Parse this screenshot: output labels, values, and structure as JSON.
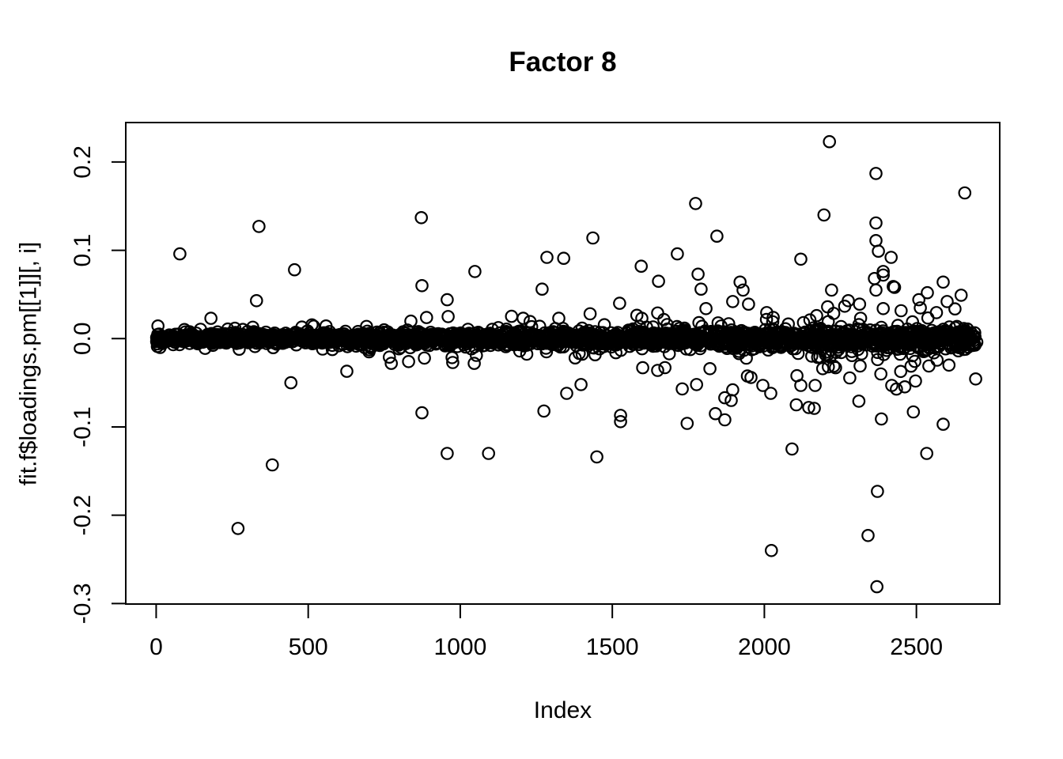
{
  "chart_data": {
    "type": "scatter",
    "title": "Factor 8",
    "xlabel": "Index",
    "ylabel": "fit.f$loadings.pm[[1]][, i]",
    "marker": "open-circle",
    "marker_color": "#000000",
    "background_color": "#ffffff",
    "x_ticks": [
      0,
      500,
      1000,
      1500,
      2000,
      2500
    ],
    "y_ticks": [
      -0.3,
      -0.2,
      -0.1,
      0.0,
      0.1,
      0.2
    ],
    "xlim": [
      -100,
      2774
    ],
    "ylim": [
      -0.3006,
      0.2447
    ],
    "x_range_of_data": [
      1,
      2700
    ],
    "grid": false,
    "legend": "none",
    "outliers": [
      [
        13,
        -0.01
      ],
      [
        78,
        0.096
      ],
      [
        161,
        -0.011
      ],
      [
        180,
        0.023
      ],
      [
        269,
        -0.215
      ],
      [
        273,
        -0.012
      ],
      [
        325,
        -0.009
      ],
      [
        330,
        0.043
      ],
      [
        338,
        0.127
      ],
      [
        382,
        -0.143
      ],
      [
        443,
        -0.05
      ],
      [
        455,
        0.078
      ],
      [
        518,
        0.014
      ],
      [
        627,
        -0.037
      ],
      [
        700,
        -0.015
      ],
      [
        767,
        -0.021
      ],
      [
        773,
        -0.028
      ],
      [
        830,
        -0.026
      ],
      [
        872,
        0.137
      ],
      [
        874,
        0.06
      ],
      [
        874,
        -0.084
      ],
      [
        882,
        -0.022
      ],
      [
        957,
        0.044
      ],
      [
        957,
        -0.13
      ],
      [
        960,
        0.025
      ],
      [
        1046,
        -0.028
      ],
      [
        1048,
        0.076
      ],
      [
        1053,
        -0.019
      ],
      [
        1093,
        -0.13
      ],
      [
        1207,
        0.023
      ],
      [
        1269,
        0.056
      ],
      [
        1275,
        -0.082
      ],
      [
        1285,
        0.092
      ],
      [
        1324,
        0.023
      ],
      [
        1340,
        0.091
      ],
      [
        1350,
        -0.062
      ],
      [
        1397,
        -0.052
      ],
      [
        1436,
        0.114
      ],
      [
        1449,
        -0.134
      ],
      [
        1524,
        0.04
      ],
      [
        1527,
        -0.087
      ],
      [
        1527,
        -0.094
      ],
      [
        1595,
        0.082
      ],
      [
        1597,
        0.023
      ],
      [
        1600,
        -0.033
      ],
      [
        1649,
        0.029
      ],
      [
        1649,
        -0.036
      ],
      [
        1652,
        0.065
      ],
      [
        1714,
        0.096
      ],
      [
        1730,
        -0.057
      ],
      [
        1746,
        -0.096
      ],
      [
        1774,
        0.153
      ],
      [
        1777,
        -0.052
      ],
      [
        1782,
        0.073
      ],
      [
        1792,
        0.056
      ],
      [
        1808,
        0.034
      ],
      [
        1821,
        -0.034
      ],
      [
        1839,
        -0.085
      ],
      [
        1844,
        0.116
      ],
      [
        1870,
        -0.067
      ],
      [
        1870,
        -0.092
      ],
      [
        1891,
        -0.07
      ],
      [
        1896,
        0.042
      ],
      [
        1896,
        -0.058
      ],
      [
        1920,
        0.064
      ],
      [
        1930,
        0.055
      ],
      [
        1948,
        0.039
      ],
      [
        1956,
        -0.044
      ],
      [
        1995,
        -0.053
      ],
      [
        2021,
        -0.062
      ],
      [
        2023,
        -0.24
      ],
      [
        2029,
        0.024
      ],
      [
        2091,
        -0.125
      ],
      [
        2105,
        -0.075
      ],
      [
        2107,
        -0.042
      ],
      [
        2120,
        0.09
      ],
      [
        2120,
        -0.053
      ],
      [
        2146,
        -0.078
      ],
      [
        2164,
        -0.079
      ],
      [
        2167,
        -0.053
      ],
      [
        2172,
        0.026
      ],
      [
        2190,
        -0.012
      ],
      [
        2196,
        0.14
      ],
      [
        2208,
        0.036
      ],
      [
        2214,
        0.223
      ],
      [
        2216,
        -0.021
      ],
      [
        2221,
        0.055
      ],
      [
        2234,
        -0.033
      ],
      [
        2276,
        0.043
      ],
      [
        2313,
        0.039
      ],
      [
        2315,
        -0.031
      ],
      [
        2341,
        -0.223
      ],
      [
        2362,
        0.068
      ],
      [
        2367,
        0.187
      ],
      [
        2367,
        0.131
      ],
      [
        2367,
        0.111
      ],
      [
        2367,
        0.055
      ],
      [
        2370,
        -0.281
      ],
      [
        2372,
        -0.173
      ],
      [
        2375,
        0.099
      ],
      [
        2383,
        -0.04
      ],
      [
        2385,
        -0.091
      ],
      [
        2391,
        0.076
      ],
      [
        2391,
        0.072
      ],
      [
        2391,
        0.034
      ],
      [
        2393,
        -0.018
      ],
      [
        2417,
        0.092
      ],
      [
        2419,
        -0.053
      ],
      [
        2424,
        0.059
      ],
      [
        2428,
        0.058
      ],
      [
        2487,
        0.019
      ],
      [
        2490,
        -0.083
      ],
      [
        2497,
        -0.048
      ],
      [
        2508,
        0.044
      ],
      [
        2534,
        -0.13
      ],
      [
        2536,
        0.052
      ],
      [
        2541,
        -0.031
      ],
      [
        2588,
        0.064
      ],
      [
        2588,
        -0.097
      ],
      [
        2601,
        0.042
      ],
      [
        2607,
        -0.03
      ],
      [
        2659,
        0.165
      ],
      [
        2661,
        -0.012
      ]
    ],
    "band": {
      "count": 2300,
      "sd_min": 0.0025,
      "sd_max": 0.006,
      "exponent": 1.2,
      "seed": 20
    },
    "mid_scatter": {
      "count": 300,
      "sd_base": 0.022,
      "floor": 0.25,
      "exponent": 1.3,
      "seed": 77
    }
  }
}
